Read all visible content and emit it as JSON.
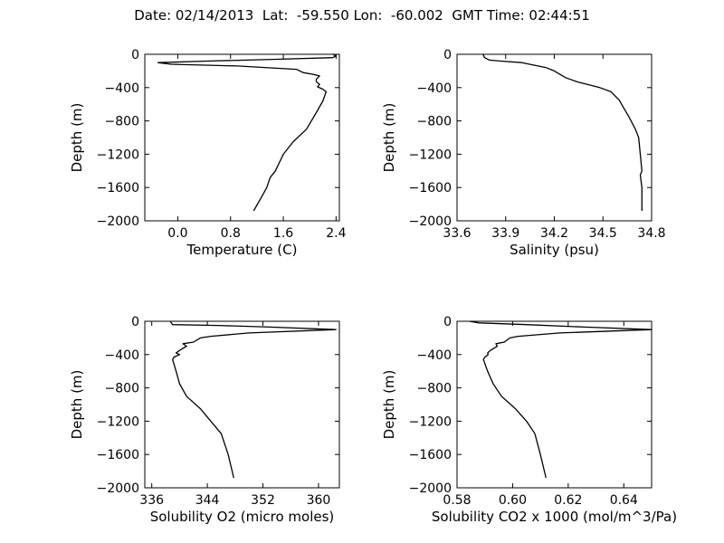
{
  "figure": {
    "title": "Date: 02/14/2013  Lat:  -59.550 Lon:  -60.002  GMT Time: 02:44:51"
  },
  "chart_data": [
    {
      "type": "line",
      "xlabel": "Temperature (C)",
      "ylabel": "Depth (m)",
      "xlim": [
        -0.5,
        2.45
      ],
      "ylim": [
        -2000,
        0
      ],
      "xticks": [
        0.0,
        0.8,
        1.6,
        2.4
      ],
      "xtick_labels": [
        "0.0",
        "0.8",
        "1.6",
        "2.4"
      ],
      "yticks": [
        0,
        -400,
        -800,
        -1200,
        -1600,
        -2000
      ],
      "ytick_labels": [
        "0",
        "−400",
        "−800",
        "−1200",
        "−1600",
        "−2000"
      ],
      "series": [
        {
          "color": "#000000",
          "x": [
            2.36,
            2.4,
            2.35,
            1.5,
            0.5,
            -0.3,
            -0.1,
            0.9,
            1.8,
            1.9,
            2.05,
            2.15,
            2.1,
            2.1,
            2.15,
            2.12,
            2.2,
            2.25,
            2.2,
            2.1,
            1.95,
            1.75,
            1.6,
            1.48,
            1.4,
            1.35,
            1.28,
            1.15
          ],
          "y": [
            -5,
            -20,
            -40,
            -60,
            -80,
            -100,
            -120,
            -140,
            -180,
            -220,
            -240,
            -260,
            -300,
            -330,
            -360,
            -390,
            -420,
            -450,
            -560,
            -700,
            -900,
            -1050,
            -1200,
            -1400,
            -1480,
            -1600,
            -1700,
            -1880
          ]
        }
      ]
    },
    {
      "type": "line",
      "xlabel": "Salinity (psu)",
      "ylabel": "Depth (m)",
      "xlim": [
        33.6,
        34.8
      ],
      "ylim": [
        -2000,
        0
      ],
      "xticks": [
        33.6,
        33.9,
        34.2,
        34.5,
        34.8
      ],
      "xtick_labels": [
        "33.6",
        "33.9",
        "34.2",
        "34.5",
        "34.8"
      ],
      "yticks": [
        0,
        -400,
        -800,
        -1200,
        -1600,
        -2000
      ],
      "ytick_labels": [
        "0",
        "−400",
        "−800",
        "−1200",
        "−1600",
        "−2000"
      ],
      "series": [
        {
          "color": "#000000",
          "x": [
            33.76,
            33.77,
            33.8,
            33.86,
            34.0,
            34.15,
            34.2,
            34.27,
            34.34,
            34.48,
            34.55,
            34.6,
            34.63,
            34.66,
            34.7,
            34.72,
            34.73,
            34.74,
            34.73,
            34.74,
            34.74
          ],
          "y": [
            0,
            -40,
            -70,
            -80,
            -100,
            -160,
            -200,
            -280,
            -330,
            -400,
            -450,
            -550,
            -650,
            -750,
            -900,
            -1000,
            -1200,
            -1400,
            -1450,
            -1600,
            -1880
          ]
        }
      ]
    },
    {
      "type": "line",
      "xlabel": "Solubility O2 (micro moles)",
      "ylabel": "Depth (m)",
      "xlim": [
        335,
        363
      ],
      "ylim": [
        -2000,
        0
      ],
      "xticks": [
        336,
        344,
        352,
        360
      ],
      "xtick_labels": [
        "336",
        "344",
        "352",
        "360"
      ],
      "yticks": [
        0,
        -400,
        -800,
        -1200,
        -1600,
        -2000
      ],
      "ytick_labels": [
        "0",
        "−400",
        "−800",
        "−1200",
        "−1600",
        "−2000"
      ],
      "series": [
        {
          "color": "#000000",
          "x": [
            338.7,
            339.0,
            345.5,
            353.0,
            362.5,
            350.0,
            344.5,
            343.0,
            342.0,
            340.5,
            341.0,
            340.0,
            339.5,
            340.0,
            339.2,
            339.0,
            339.5,
            340.0,
            341.0,
            343.0,
            344.5,
            346.0,
            347.0,
            347.8
          ],
          "y": [
            -5,
            -40,
            -50,
            -70,
            -100,
            -140,
            -180,
            -200,
            -250,
            -270,
            -300,
            -350,
            -380,
            -400,
            -430,
            -460,
            -600,
            -750,
            -900,
            -1050,
            -1200,
            -1350,
            -1600,
            -1880
          ]
        }
      ]
    },
    {
      "type": "line",
      "xlabel": "Solubility CO2 x 1000 (mol/m^3/Pa)",
      "ylabel": "Depth (m)",
      "xlim": [
        0.58,
        0.65
      ],
      "ylim": [
        -2000,
        0
      ],
      "xticks": [
        0.58,
        0.6,
        0.62,
        0.64
      ],
      "xtick_labels": [
        "0.58",
        "0.60",
        "0.62",
        "0.64"
      ],
      "yticks": [
        0,
        -400,
        -800,
        -1200,
        -1600,
        -2000
      ],
      "ytick_labels": [
        "0",
        "−400",
        "−800",
        "−1200",
        "−1600",
        "−2000"
      ],
      "series": [
        {
          "color": "#000000",
          "x": [
            0.5845,
            0.588,
            0.605,
            0.626,
            0.65,
            0.617,
            0.602,
            0.599,
            0.597,
            0.594,
            0.5945,
            0.592,
            0.591,
            0.5912,
            0.59,
            0.5895,
            0.591,
            0.593,
            0.596,
            0.601,
            0.605,
            0.608,
            0.61,
            0.612
          ],
          "y": [
            0,
            -20,
            -40,
            -70,
            -100,
            -140,
            -180,
            -200,
            -250,
            -270,
            -300,
            -350,
            -380,
            -400,
            -430,
            -460,
            -600,
            -750,
            -900,
            -1050,
            -1200,
            -1350,
            -1600,
            -1880
          ]
        }
      ]
    }
  ]
}
